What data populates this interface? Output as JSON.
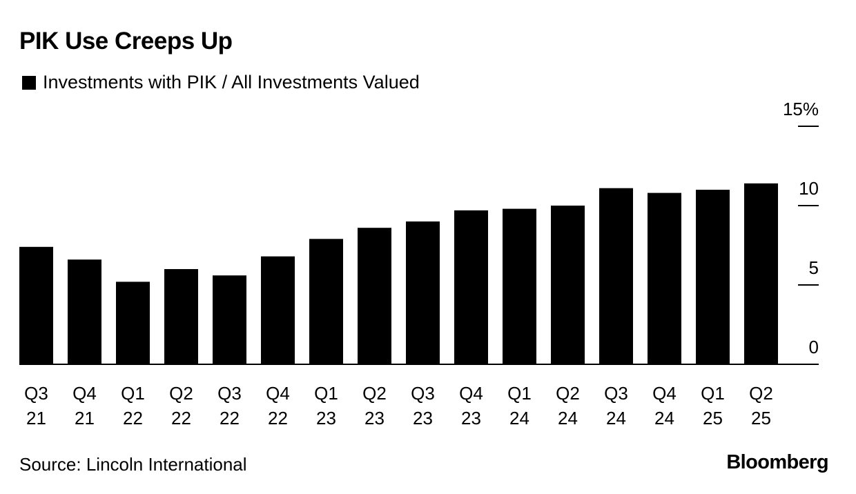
{
  "title": "PIK Use Creeps Up",
  "legend_label": "Investments with PIK / All Investments Valued",
  "source": "Source: Lincoln International",
  "brand": "Bloomberg",
  "colors": {
    "bar": "#000000",
    "background": "#ffffff"
  },
  "chart_data": {
    "type": "bar",
    "categories": [
      [
        "Q3",
        "21"
      ],
      [
        "Q4",
        "21"
      ],
      [
        "Q1",
        "22"
      ],
      [
        "Q2",
        "22"
      ],
      [
        "Q3",
        "22"
      ],
      [
        "Q4",
        "22"
      ],
      [
        "Q1",
        "23"
      ],
      [
        "Q2",
        "23"
      ],
      [
        "Q3",
        "23"
      ],
      [
        "Q4",
        "23"
      ],
      [
        "Q1",
        "24"
      ],
      [
        "Q2",
        "24"
      ],
      [
        "Q3",
        "24"
      ],
      [
        "Q4",
        "24"
      ],
      [
        "Q1",
        "25"
      ],
      [
        "Q2",
        "25"
      ]
    ],
    "series": [
      {
        "name": "Investments with PIK / All Investments Valued",
        "values": [
          7.4,
          6.6,
          5.2,
          6.0,
          5.6,
          6.8,
          7.9,
          8.6,
          9.0,
          9.7,
          9.8,
          10.0,
          11.1,
          10.8,
          11.0,
          11.4
        ]
      }
    ],
    "ylim": [
      0,
      15
    ],
    "yticks": [
      {
        "value": 0,
        "label": "0"
      },
      {
        "value": 5,
        "label": "5"
      },
      {
        "value": 10,
        "label": "10"
      },
      {
        "value": 15,
        "label": "15%"
      }
    ],
    "axis_side": "right",
    "grid": false,
    "legend_position": "top-left"
  }
}
